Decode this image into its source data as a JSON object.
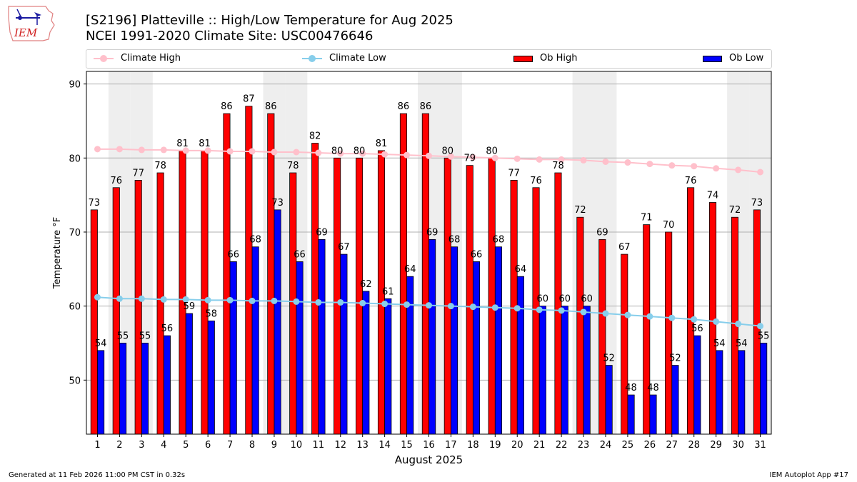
{
  "header": {
    "logo_text": "IEM",
    "title_line1": "[S2196] Platteville :: High/Low Temperature for Aug 2025",
    "title_line2": "NCEI 1991-2020 Climate Site: USC00476646"
  },
  "legend": {
    "items": [
      {
        "label": "Climate High",
        "kind": "line",
        "color": "#FFC0CB"
      },
      {
        "label": "Climate Low",
        "kind": "line",
        "color": "#87CEEB"
      },
      {
        "label": "Ob High",
        "kind": "patch",
        "color": "#FF0000"
      },
      {
        "label": "Ob Low",
        "kind": "patch",
        "color": "#0000FF"
      }
    ]
  },
  "footer": {
    "left": "Generated at 11 Feb 2026 11:00 PM CST in 0.32s",
    "right": "IEM Autoplot App #17"
  },
  "chart_data": {
    "type": "bar",
    "title": "[S2196] Platteville :: High/Low Temperature for Aug 2025",
    "subtitle": "NCEI 1991-2020 Climate Site: USC00476646",
    "xlabel": "August 2025",
    "ylabel": "Temperature °F",
    "ylim": [
      42.7,
      91.7
    ],
    "yticks": [
      50,
      60,
      70,
      80,
      90
    ],
    "grid": "horizontal",
    "legend_position": "top",
    "weekend_shading_color": "#EEEEEE",
    "weekend_days": [
      2,
      3,
      9,
      10,
      16,
      17,
      23,
      24,
      30,
      31
    ],
    "categories": [
      "1",
      "2",
      "3",
      "4",
      "5",
      "6",
      "7",
      "8",
      "9",
      "10",
      "11",
      "12",
      "13",
      "14",
      "15",
      "16",
      "17",
      "18",
      "19",
      "20",
      "21",
      "22",
      "23",
      "24",
      "25",
      "26",
      "27",
      "28",
      "29",
      "30",
      "31"
    ],
    "series": [
      {
        "name": "Ob High",
        "type": "bar",
        "color": "#FF0000",
        "values": [
          73,
          76,
          77,
          78,
          81,
          81,
          86,
          87,
          86,
          78,
          82,
          80,
          80,
          81,
          86,
          86,
          80,
          79,
          80,
          77,
          76,
          78,
          72,
          69,
          67,
          71,
          70,
          76,
          74,
          72,
          73
        ]
      },
      {
        "name": "Ob Low",
        "type": "bar",
        "color": "#0000FF",
        "values": [
          54,
          55,
          55,
          56,
          59,
          58,
          66,
          68,
          73,
          66,
          69,
          67,
          62,
          61,
          64,
          69,
          68,
          66,
          68,
          64,
          60,
          60,
          60,
          52,
          48,
          48,
          52,
          56,
          54,
          54,
          55
        ]
      },
      {
        "name": "Climate High",
        "type": "line",
        "color": "#FFC0CB",
        "values": [
          81.2,
          81.2,
          81.1,
          81.1,
          81.0,
          81.0,
          80.9,
          80.9,
          80.8,
          80.8,
          80.7,
          80.6,
          80.6,
          80.5,
          80.4,
          80.3,
          80.2,
          80.1,
          80.0,
          79.9,
          79.8,
          79.8,
          79.7,
          79.5,
          79.4,
          79.2,
          79.0,
          78.9,
          78.6,
          78.4,
          78.1
        ]
      },
      {
        "name": "Climate Low",
        "type": "line",
        "color": "#87CEEB",
        "values": [
          61.2,
          61.0,
          61.0,
          60.9,
          60.9,
          60.8,
          60.8,
          60.7,
          60.7,
          60.6,
          60.5,
          60.5,
          60.4,
          60.3,
          60.2,
          60.1,
          60.0,
          59.9,
          59.8,
          59.7,
          59.5,
          59.4,
          59.2,
          59.0,
          58.8,
          58.6,
          58.4,
          58.2,
          57.9,
          57.6,
          57.3
        ]
      }
    ]
  }
}
